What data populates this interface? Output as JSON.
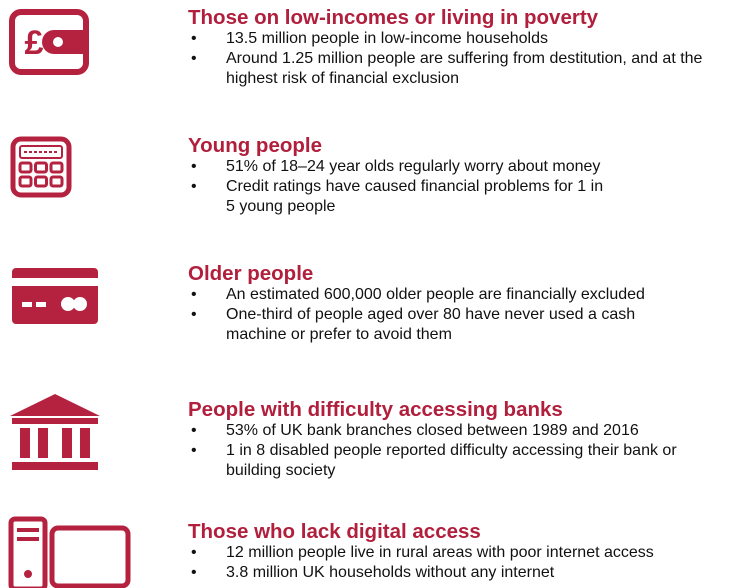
{
  "sections": [
    {
      "title": "Those on low-incomes or living in poverty",
      "bullets": [
        "13.5 million people in low-income households",
        "Around 1.25 million people are suffering from destitution, and at the highest risk of financial exclusion"
      ]
    },
    {
      "title": "Young people",
      "bullets": [
        "51% of 18–24 year olds regularly worry about money",
        "Credit ratings have caused financial problems for 1 in 5 young people"
      ]
    },
    {
      "title": "Older people",
      "bullets": [
        "An estimated 600,000 older people are financially excluded",
        "One-third of people aged over 80 have never used a cash machine or prefer to avoid them"
      ]
    },
    {
      "title": "People with difficulty accessing banks",
      "bullets": [
        "53% of UK bank branches closed between 1989 and 2016",
        "1 in 8 disabled people reported difficulty accessing their bank or building society"
      ]
    },
    {
      "title": "Those who lack digital access",
      "bullets": [
        "12 million people live in rural areas with poor internet access",
        "3.8 million UK households without any internet"
      ]
    }
  ]
}
